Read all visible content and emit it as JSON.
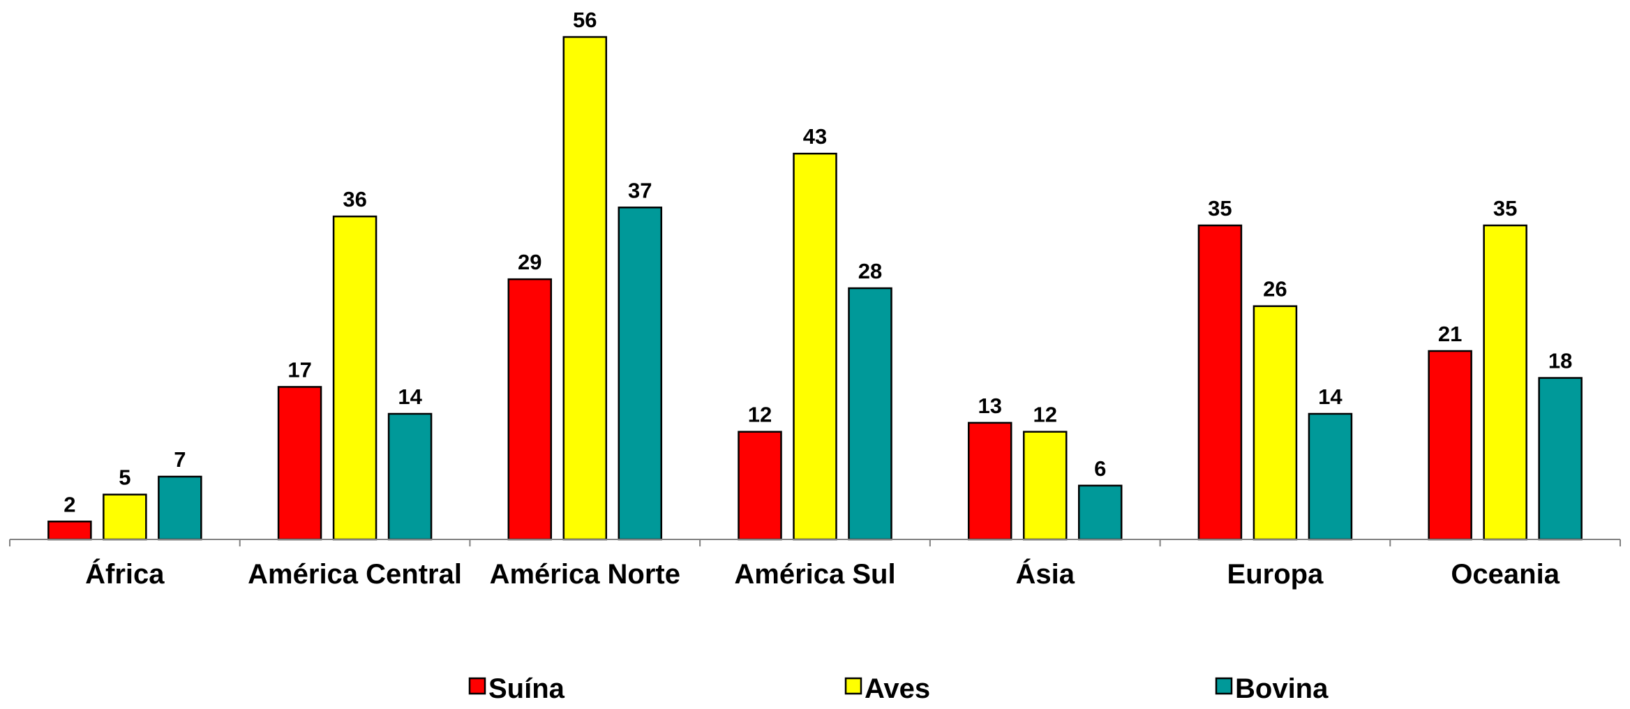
{
  "chart_data": {
    "type": "bar",
    "title": "",
    "xlabel": "",
    "ylabel": "",
    "ylim": [
      0,
      56
    ],
    "grid": false,
    "legend_position": "bottom",
    "categories": [
      "África",
      "América Central",
      "América Norte",
      "América Sul",
      "Ásia",
      "Europa",
      "Oceania"
    ],
    "series": [
      {
        "name": "Suína",
        "color": "#FF0000",
        "values": [
          2,
          17,
          29,
          12,
          13,
          35,
          21
        ]
      },
      {
        "name": "Aves",
        "color": "#FFFF00",
        "values": [
          5,
          36,
          56,
          43,
          12,
          26,
          35
        ]
      },
      {
        "name": "Bovina",
        "color": "#009999",
        "values": [
          7,
          14,
          37,
          28,
          6,
          14,
          18
        ]
      }
    ]
  }
}
